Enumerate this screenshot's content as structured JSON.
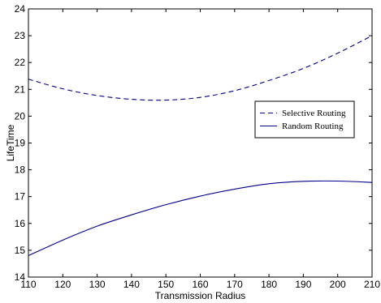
{
  "chart_data": {
    "type": "line",
    "title": "",
    "xlabel": "Transmission Radius",
    "ylabel": "LifeTime",
    "xlim": [
      110,
      210
    ],
    "ylim": [
      14,
      24
    ],
    "xticks": [
      110,
      120,
      130,
      140,
      150,
      160,
      170,
      180,
      190,
      200,
      210
    ],
    "yticks": [
      14,
      15,
      16,
      17,
      18,
      19,
      20,
      21,
      22,
      23,
      24
    ],
    "grid": false,
    "legend_position": "right",
    "x": [
      110,
      120,
      130,
      140,
      150,
      160,
      170,
      180,
      190,
      200,
      210
    ],
    "series": [
      {
        "name": "Selective Routing",
        "style": "dashed",
        "color": "#00008b",
        "values": [
          21.38,
          21.02,
          20.77,
          20.63,
          20.6,
          20.7,
          20.95,
          21.33,
          21.78,
          22.35,
          23.0
        ]
      },
      {
        "name": "Random Routing",
        "style": "solid",
        "color": "#00008b",
        "values": [
          14.8,
          15.38,
          15.9,
          16.32,
          16.7,
          17.02,
          17.28,
          17.48,
          17.57,
          17.58,
          17.53
        ]
      }
    ]
  }
}
